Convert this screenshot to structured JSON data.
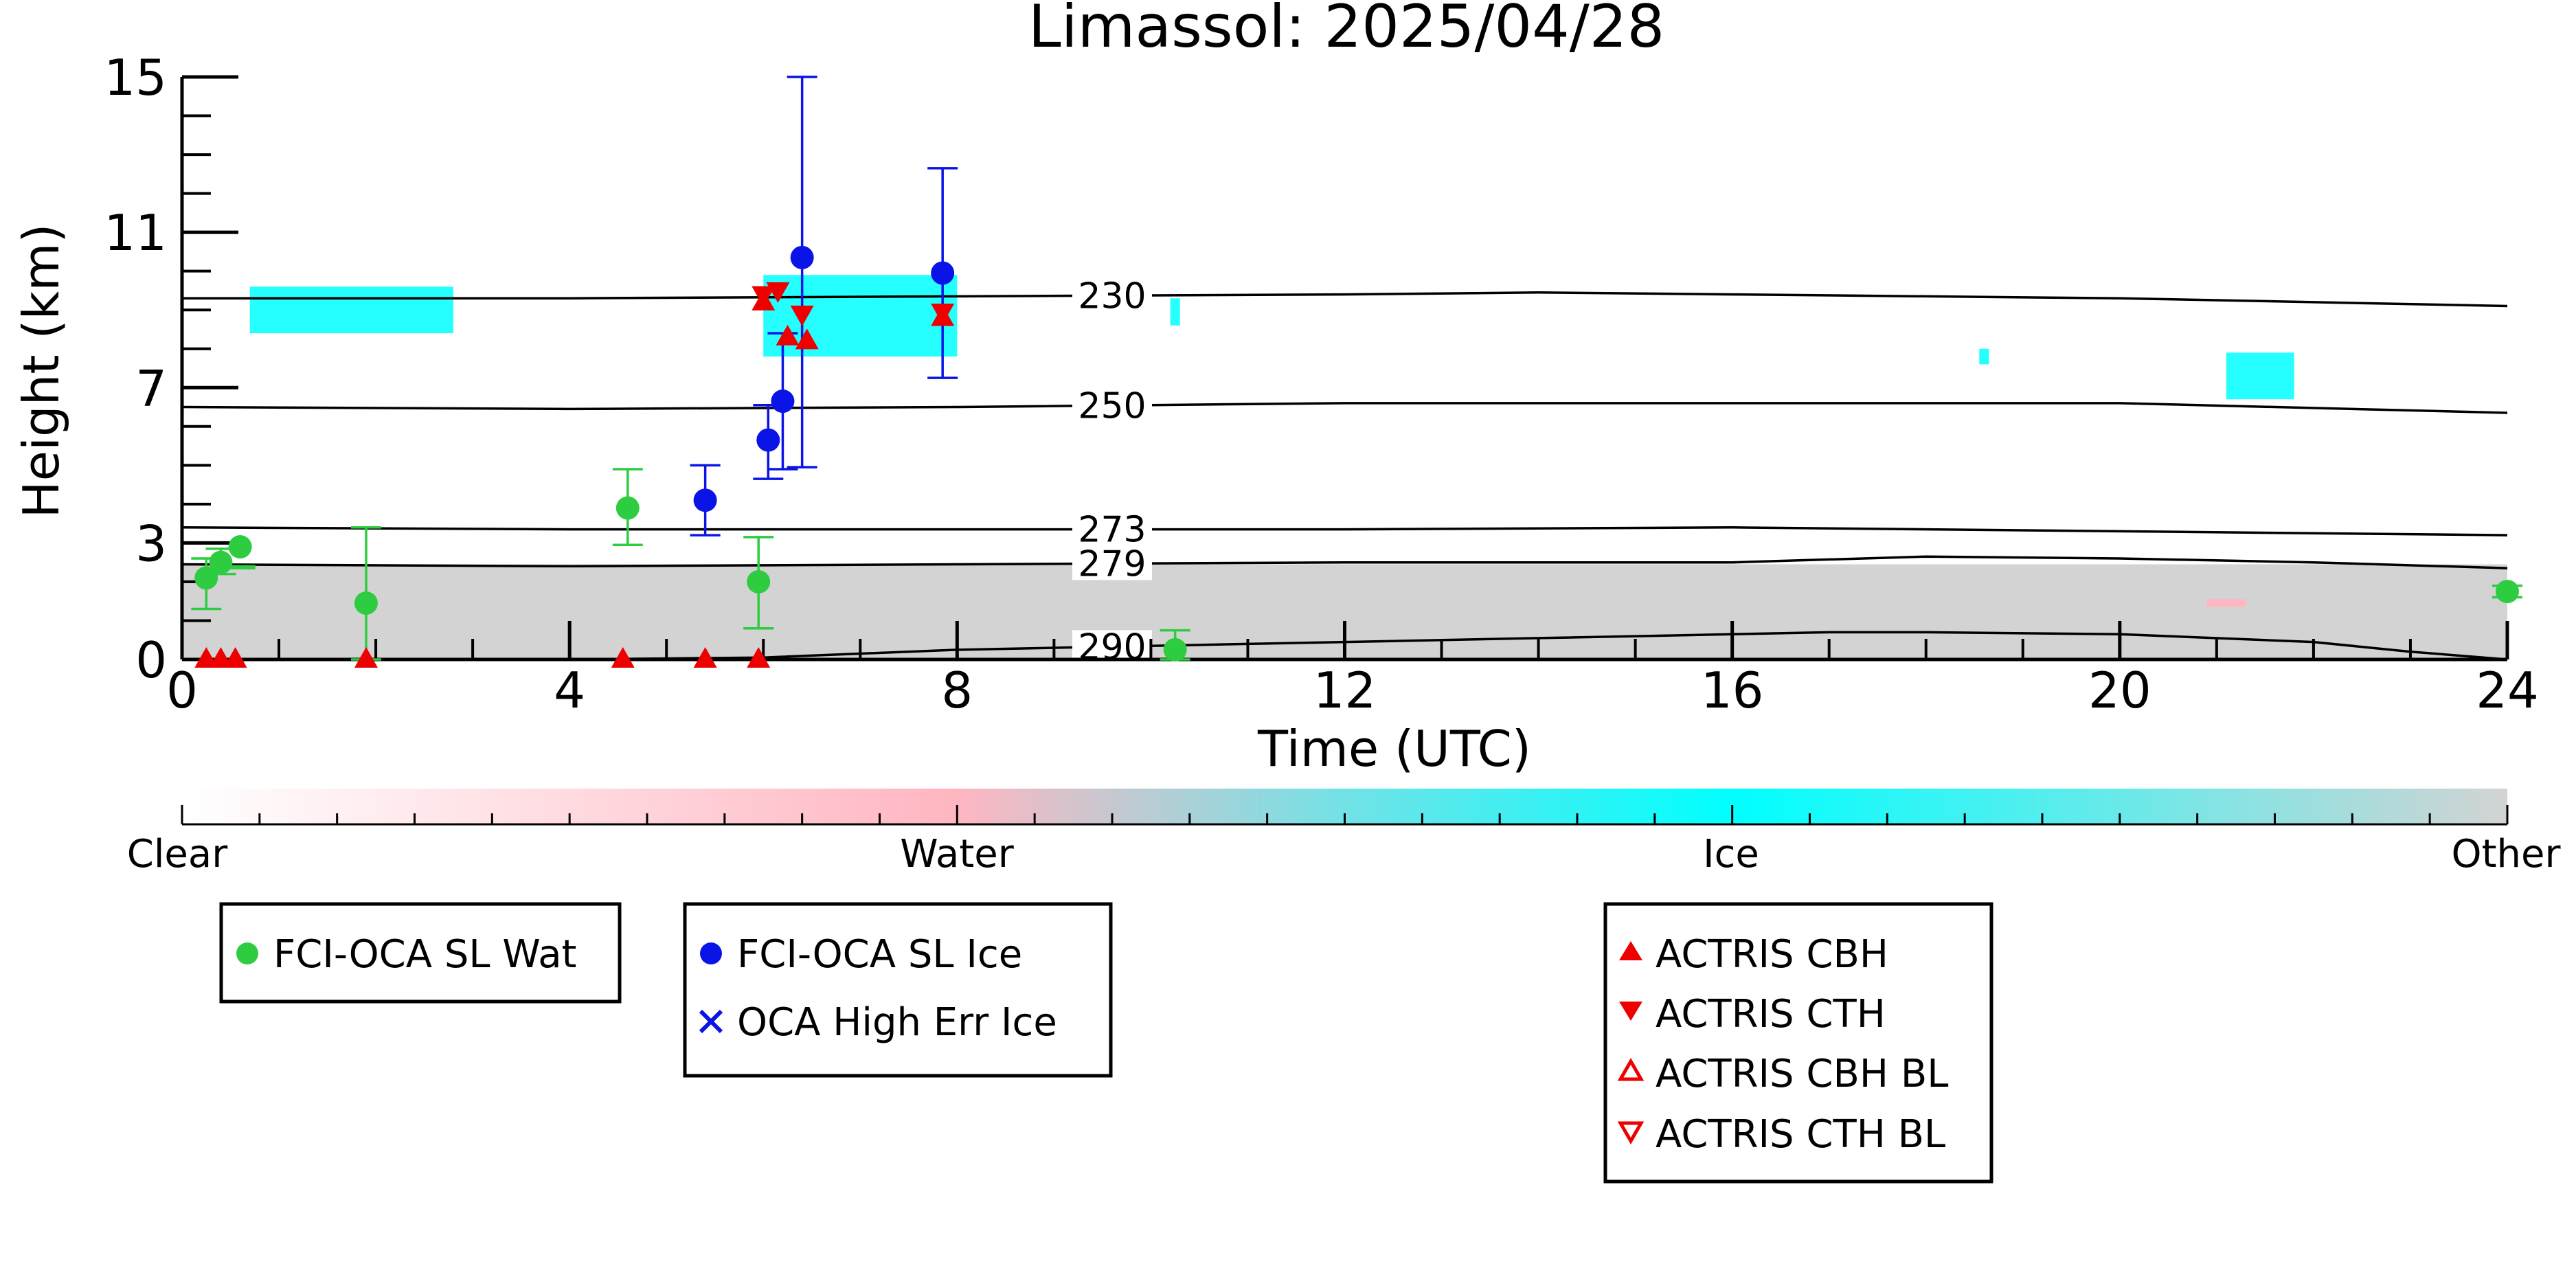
{
  "chart_data": {
    "type": "scatter",
    "title": "Limassol: 2025/04/28",
    "xlabel": "Time (UTC)",
    "ylabel": "Height (km)",
    "xlim": [
      0,
      24
    ],
    "ylim": [
      0,
      15
    ],
    "x_ticks": [
      0,
      4,
      8,
      12,
      16,
      20,
      24
    ],
    "y_ticks": [
      0,
      3,
      7,
      11,
      15
    ],
    "grid": false,
    "temperature_contours": [
      {
        "label": "230",
        "label_x": 9.6,
        "points": [
          [
            0,
            9.3
          ],
          [
            4,
            9.3
          ],
          [
            8,
            9.35
          ],
          [
            12,
            9.4
          ],
          [
            14,
            9.45
          ],
          [
            16,
            9.4
          ],
          [
            20,
            9.3
          ],
          [
            24,
            9.1
          ]
        ]
      },
      {
        "label": "250",
        "label_x": 9.6,
        "points": [
          [
            0,
            6.5
          ],
          [
            4,
            6.45
          ],
          [
            8,
            6.5
          ],
          [
            12,
            6.6
          ],
          [
            16,
            6.6
          ],
          [
            20,
            6.6
          ],
          [
            24,
            6.35
          ]
        ]
      },
      {
        "label": "273",
        "label_x": 9.6,
        "points": [
          [
            0,
            3.4
          ],
          [
            4,
            3.35
          ],
          [
            8,
            3.35
          ],
          [
            12,
            3.35
          ],
          [
            16,
            3.4
          ],
          [
            20,
            3.3
          ],
          [
            24,
            3.2
          ]
        ]
      },
      {
        "label": "279",
        "label_x": 9.6,
        "points": [
          [
            0,
            2.45
          ],
          [
            4,
            2.4
          ],
          [
            8,
            2.45
          ],
          [
            12,
            2.5
          ],
          [
            16,
            2.5
          ],
          [
            18,
            2.65
          ],
          [
            20,
            2.6
          ],
          [
            22,
            2.5
          ],
          [
            24,
            2.35
          ]
        ]
      },
      {
        "label": "290",
        "label_x": 9.6,
        "points": [
          [
            0,
            0
          ],
          [
            4,
            0.0
          ],
          [
            6,
            0.05
          ],
          [
            8,
            0.25
          ],
          [
            10,
            0.35
          ],
          [
            12,
            0.45
          ],
          [
            14,
            0.55
          ],
          [
            16,
            0.65
          ],
          [
            17,
            0.7
          ],
          [
            18,
            0.7
          ],
          [
            20,
            0.65
          ],
          [
            22,
            0.45
          ],
          [
            23,
            0.2
          ],
          [
            24,
            0
          ]
        ]
      }
    ],
    "cloud_regions": [
      {
        "class": "Other",
        "x": [
          0,
          24
        ],
        "y": [
          0,
          2.45
        ]
      },
      {
        "class": "Ice",
        "x": [
          0.7,
          2.8
        ],
        "y": [
          8.4,
          9.6
        ]
      },
      {
        "class": "Ice",
        "x": [
          6.0,
          8.0
        ],
        "y": [
          7.8,
          9.9
        ]
      },
      {
        "class": "Ice",
        "x": [
          10.2,
          10.3
        ],
        "y": [
          8.6,
          9.3
        ]
      },
      {
        "class": "Ice",
        "x": [
          18.55,
          18.65
        ],
        "y": [
          7.6,
          8.0
        ]
      },
      {
        "class": "Ice",
        "x": [
          21.1,
          21.8
        ],
        "y": [
          6.7,
          7.9
        ]
      },
      {
        "class": "Water",
        "x": [
          20.9,
          21.3
        ],
        "y": [
          1.35,
          1.55
        ]
      }
    ],
    "series": [
      {
        "name": "FCI-OCA SL Wat",
        "marker": "circle",
        "color": "#2ecc40",
        "points": [
          {
            "x": 0.25,
            "y": 2.1,
            "lo": 1.3,
            "hi": 2.6
          },
          {
            "x": 0.4,
            "y": 2.5,
            "lo": 2.2,
            "hi": 2.85
          },
          {
            "x": 0.6,
            "y": 2.9,
            "lo": 2.35,
            "hi": 2.4
          },
          {
            "x": 1.9,
            "y": 1.45,
            "lo": 0,
            "hi": 3.4
          },
          {
            "x": 4.6,
            "y": 3.9,
            "lo": 2.95,
            "hi": 4.9
          },
          {
            "x": 5.95,
            "y": 2.0,
            "lo": 0.8,
            "hi": 3.15
          },
          {
            "x": 10.25,
            "y": 0.25,
            "lo": 0,
            "hi": 0.75
          },
          {
            "x": 24.0,
            "y": 1.75,
            "lo": 1.6,
            "hi": 1.9
          }
        ]
      },
      {
        "name": "FCI-OCA SL Ice",
        "marker": "circle",
        "color": "#0a14e6",
        "points": [
          {
            "x": 5.4,
            "y": 4.1,
            "lo": 3.2,
            "hi": 5.0
          },
          {
            "x": 6.05,
            "y": 5.65,
            "lo": 4.65,
            "hi": 6.55
          },
          {
            "x": 6.2,
            "y": 6.65,
            "lo": 4.9,
            "hi": 8.4
          },
          {
            "x": 6.4,
            "y": 10.35,
            "lo": 4.95,
            "hi": 15
          },
          {
            "x": 7.85,
            "y": 9.95,
            "lo": 7.25,
            "hi": 12.65
          }
        ]
      },
      {
        "name": "OCA High Err Ice",
        "marker": "x",
        "color": "#0a14e6",
        "points": []
      },
      {
        "name": "ACTRIS CBH",
        "marker": "triangle-up",
        "color": "#ee0000",
        "points": [
          {
            "x": 0.25,
            "y": 0
          },
          {
            "x": 0.4,
            "y": 0
          },
          {
            "x": 0.55,
            "y": 0
          },
          {
            "x": 1.9,
            "y": 0
          },
          {
            "x": 4.55,
            "y": 0
          },
          {
            "x": 5.4,
            "y": 0
          },
          {
            "x": 5.95,
            "y": 0
          },
          {
            "x": 6.0,
            "y": 9.2
          },
          {
            "x": 6.25,
            "y": 8.3
          },
          {
            "x": 6.45,
            "y": 8.2
          },
          {
            "x": 7.85,
            "y": 8.8
          }
        ]
      },
      {
        "name": "ACTRIS CTH",
        "marker": "triangle-down",
        "color": "#ee0000",
        "points": [
          {
            "x": 6.0,
            "y": 9.4
          },
          {
            "x": 6.15,
            "y": 9.5
          },
          {
            "x": 6.4,
            "y": 8.9
          },
          {
            "x": 7.85,
            "y": 8.95
          }
        ]
      },
      {
        "name": "ACTRIS CBH BL",
        "marker": "triangle-up-open",
        "color": "#ee0000",
        "points": []
      },
      {
        "name": "ACTRIS CTH BL",
        "marker": "triangle-down-open",
        "color": "#ee0000",
        "points": []
      }
    ],
    "colorbar": {
      "labels": [
        "Clear",
        "Water",
        "Ice",
        "Other"
      ],
      "colors": [
        "#ffffff",
        "#ffb6c1",
        "#00ffff",
        "#d3d3d3"
      ]
    },
    "legends": [
      {
        "entries": [
          "FCI-OCA SL Wat"
        ]
      },
      {
        "entries": [
          "FCI-OCA SL Ice",
          "OCA High Err Ice"
        ]
      },
      {
        "entries": [
          "ACTRIS CBH",
          "ACTRIS CTH",
          "ACTRIS CBH BL",
          "ACTRIS CTH BL"
        ]
      }
    ]
  }
}
